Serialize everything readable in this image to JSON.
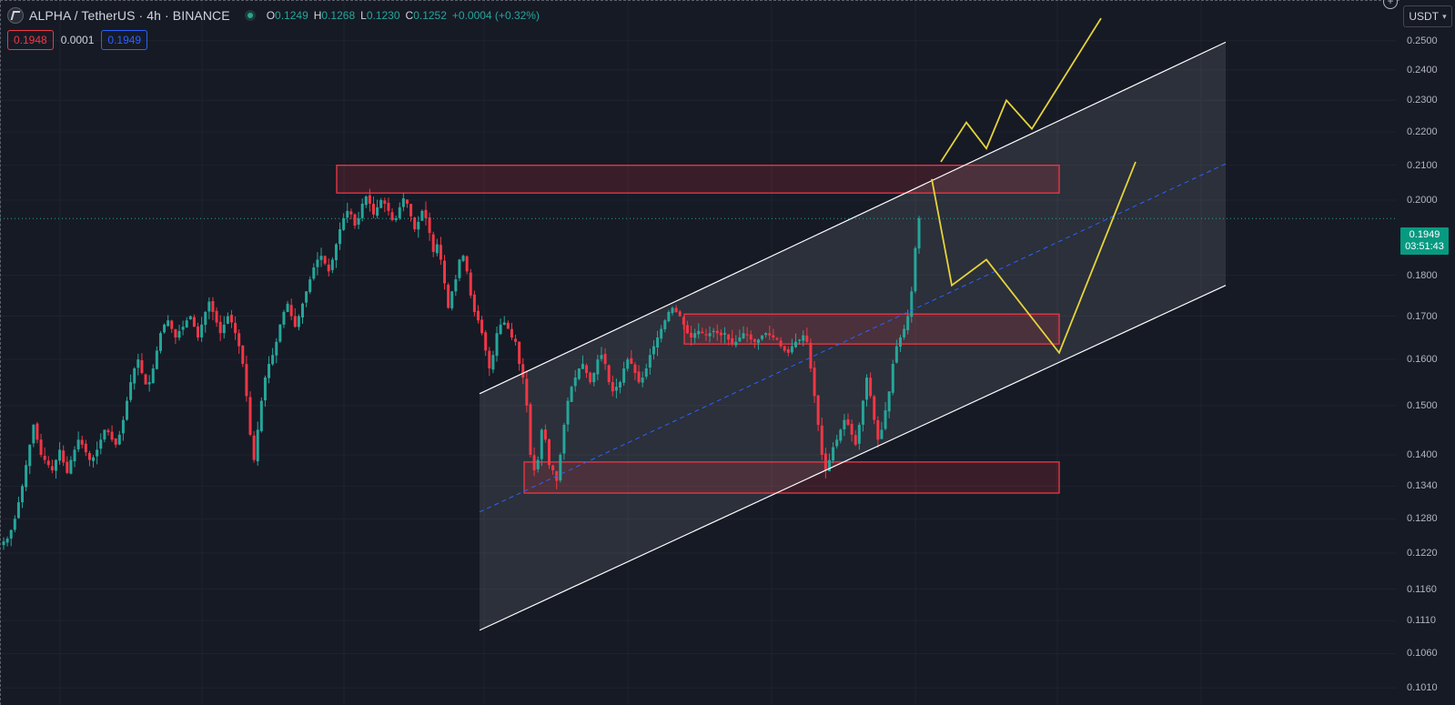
{
  "header": {
    "symbol": "ALPHA / TetherUS · 4h · BINANCE",
    "ohlc": {
      "o_label": "O",
      "o_value": "0.1249",
      "h_label": "H",
      "h_value": "0.1268",
      "l_label": "L",
      "l_value": "0.1230",
      "c_label": "C",
      "c_value": "0.1252",
      "change": "+0.0004 (+0.32%)"
    }
  },
  "trade": {
    "sell_price": "0.1948",
    "spread": "0.0001",
    "buy_price": "0.1949"
  },
  "currency": "USDT",
  "price_scale": {
    "labels": [
      "0.2500",
      "0.2400",
      "0.2300",
      "0.2200",
      "0.2100",
      "0.2000",
      "0.1800",
      "0.1700",
      "0.1600",
      "0.1500",
      "0.1400",
      "0.1340",
      "0.1280",
      "0.1220",
      "0.1160",
      "0.1110",
      "0.1060",
      "0.1010"
    ],
    "last_price": "0.1949",
    "countdown": "03:51:43"
  },
  "colors": {
    "background": "#161a25",
    "up": "#26a69a",
    "down": "#f23645",
    "zone_border": "#f23645",
    "channel": "#ffffff",
    "projection": "#e6d33a",
    "midline": "#2962ff"
  },
  "chart_data": {
    "type": "candlestick",
    "timeframe": "4h",
    "scale": "log",
    "ylim": [
      0.099,
      0.262
    ],
    "close_path": [
      0.124,
      0.1245,
      0.126,
      0.128,
      0.131,
      0.134,
      0.138,
      0.142,
      0.146,
      0.143,
      0.14,
      0.139,
      0.138,
      0.137,
      0.139,
      0.141,
      0.1385,
      0.1365,
      0.139,
      0.141,
      0.143,
      0.142,
      0.1405,
      0.139,
      0.1395,
      0.141,
      0.143,
      0.145,
      0.1445,
      0.143,
      0.142,
      0.144,
      0.147,
      0.151,
      0.155,
      0.158,
      0.16,
      0.157,
      0.1545,
      0.155,
      0.158,
      0.162,
      0.166,
      0.168,
      0.169,
      0.167,
      0.165,
      0.1665,
      0.1675,
      0.169,
      0.17,
      0.1675,
      0.165,
      0.168,
      0.171,
      0.1735,
      0.171,
      0.1685,
      0.166,
      0.168,
      0.17,
      0.1685,
      0.166,
      0.163,
      0.159,
      0.152,
      0.144,
      0.139,
      0.145,
      0.151,
      0.156,
      0.159,
      0.161,
      0.164,
      0.168,
      0.171,
      0.173,
      0.17,
      0.1675,
      0.17,
      0.173,
      0.176,
      0.179,
      0.182,
      0.184,
      0.185,
      0.183,
      0.181,
      0.184,
      0.188,
      0.192,
      0.195,
      0.197,
      0.196,
      0.193,
      0.195,
      0.199,
      0.201,
      0.199,
      0.196,
      0.198,
      0.2,
      0.199,
      0.197,
      0.1945,
      0.195,
      0.198,
      0.2005,
      0.199,
      0.1955,
      0.192,
      0.194,
      0.197,
      0.195,
      0.191,
      0.186,
      0.188,
      0.184,
      0.178,
      0.172,
      0.176,
      0.179,
      0.184,
      0.185,
      0.181,
      0.175,
      0.171,
      0.169,
      0.166,
      0.162,
      0.158,
      0.161,
      0.166,
      0.168,
      0.1685,
      0.167,
      0.165,
      0.164,
      0.159,
      0.156,
      0.15,
      0.14,
      0.137,
      0.139,
      0.145,
      0.143,
      0.138,
      0.137,
      0.135,
      0.14,
      0.146,
      0.151,
      0.154,
      0.156,
      0.158,
      0.159,
      0.157,
      0.155,
      0.157,
      0.16,
      0.161,
      0.159,
      0.155,
      0.153,
      0.154,
      0.155,
      0.158,
      0.16,
      0.159,
      0.157,
      0.155,
      0.156,
      0.158,
      0.161,
      0.163,
      0.165,
      0.167,
      0.169,
      0.171,
      0.172,
      0.171,
      0.17,
      0.168,
      0.166,
      0.165,
      0.166,
      0.1665,
      0.166,
      0.1655,
      0.166,
      0.1665,
      0.166,
      0.1655,
      0.166,
      0.1645,
      0.1635,
      0.164,
      0.165,
      0.166,
      0.1655,
      0.1645,
      0.164,
      0.1645,
      0.1655,
      0.166,
      0.1655,
      0.165,
      0.1645,
      0.163,
      0.162,
      0.1615,
      0.163,
      0.164,
      0.1645,
      0.1655,
      0.164,
      0.158,
      0.152,
      0.146,
      0.14,
      0.137,
      0.139,
      0.1415,
      0.143,
      0.145,
      0.147,
      0.146,
      0.144,
      0.142,
      0.146,
      0.151,
      0.156,
      0.152,
      0.147,
      0.143,
      0.145,
      0.149,
      0.153,
      0.159,
      0.163,
      0.165,
      0.167,
      0.17,
      0.176,
      0.187,
      0.195
    ],
    "zones": [
      {
        "top": 0.21,
        "bottom": 0.202
      },
      {
        "top": 0.1705,
        "bottom": 0.1635
      },
      {
        "top": 0.1386,
        "bottom": 0.1327
      }
    ],
    "channel": {
      "upper": [
        0.1525,
        0.2495
      ],
      "lower": [
        0.1095,
        0.1775
      ]
    },
    "projection_up": [
      0.211,
      0.223,
      0.215,
      0.23,
      0.221,
      0.258
    ],
    "projection_down": [
      0.206,
      0.1775,
      0.184,
      0.1615,
      0.211
    ]
  }
}
